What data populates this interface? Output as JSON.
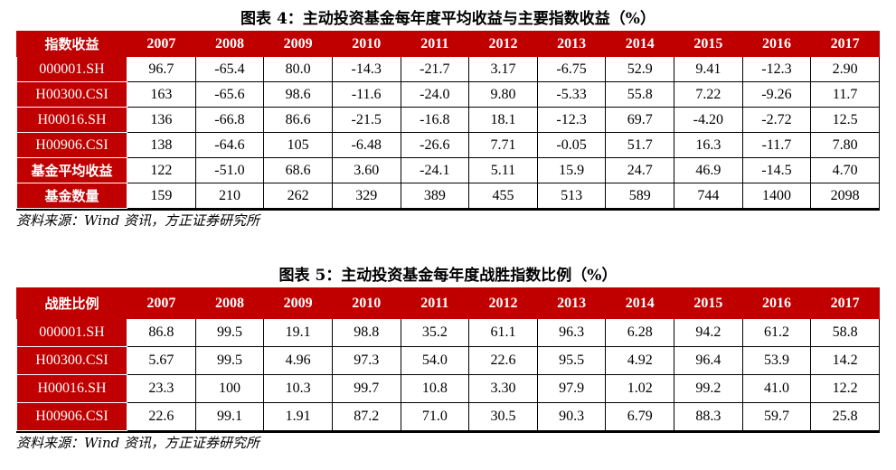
{
  "table1": {
    "title": "图表 4：主动投资基金每年度平均收益与主要指数收益（%）",
    "headers": [
      "指数收益",
      "2007",
      "2008",
      "2009",
      "2010",
      "2011",
      "2012",
      "2013",
      "2014",
      "2015",
      "2016",
      "2017"
    ],
    "rows": [
      [
        "000001.SH",
        "96.7",
        "-65.4",
        "80.0",
        "-14.3",
        "-21.7",
        "3.17",
        "-6.75",
        "52.9",
        "9.41",
        "-12.3",
        "2.90"
      ],
      [
        "H00300.CSI",
        "163",
        "-65.6",
        "98.6",
        "-11.6",
        "-24.0",
        "9.80",
        "-5.33",
        "55.8",
        "7.22",
        "-9.26",
        "11.7"
      ],
      [
        "H00016.SH",
        "136",
        "-66.8",
        "86.6",
        "-21.5",
        "-16.8",
        "18.1",
        "-12.3",
        "69.7",
        "-4.20",
        "-2.72",
        "12.5"
      ],
      [
        "H00906.CSI",
        "138",
        "-64.6",
        "105",
        "-6.48",
        "-26.6",
        "7.71",
        "-0.05",
        "51.7",
        "16.3",
        "-11.7",
        "7.80"
      ],
      [
        "基金平均收益",
        "122",
        "-51.0",
        "68.6",
        "3.60",
        "-24.1",
        "5.11",
        "15.9",
        "24.7",
        "46.9",
        "-14.5",
        "4.70"
      ],
      [
        "基金数量",
        "159",
        "210",
        "262",
        "329",
        "389",
        "455",
        "513",
        "589",
        "744",
        "1400",
        "2098"
      ]
    ],
    "source": "资料来源：Wind 资讯，方正证券研究所"
  },
  "table2": {
    "title": "图表 5：主动投资基金每年度战胜指数比例（%）",
    "headers": [
      "战胜比例",
      "2007",
      "2008",
      "2009",
      "2010",
      "2011",
      "2012",
      "2013",
      "2014",
      "2015",
      "2016",
      "2017"
    ],
    "rows": [
      [
        "000001.SH",
        "86.8",
        "99.5",
        "19.1",
        "98.8",
        "35.2",
        "61.1",
        "96.3",
        "6.28",
        "94.2",
        "61.2",
        "58.8"
      ],
      [
        "H00300.CSI",
        "5.67",
        "99.5",
        "4.96",
        "97.3",
        "54.0",
        "22.6",
        "95.5",
        "4.92",
        "96.4",
        "53.9",
        "14.2"
      ],
      [
        "H00016.SH",
        "23.3",
        "100",
        "10.3",
        "99.7",
        "10.8",
        "3.30",
        "97.9",
        "1.02",
        "99.2",
        "41.0",
        "12.2"
      ],
      [
        "H00906.CSI",
        "22.6",
        "99.1",
        "1.91",
        "87.2",
        "71.0",
        "30.5",
        "90.3",
        "6.79",
        "88.3",
        "59.7",
        "25.8"
      ]
    ],
    "source": "资料来源：Wind 资讯，方正证券研究所"
  }
}
